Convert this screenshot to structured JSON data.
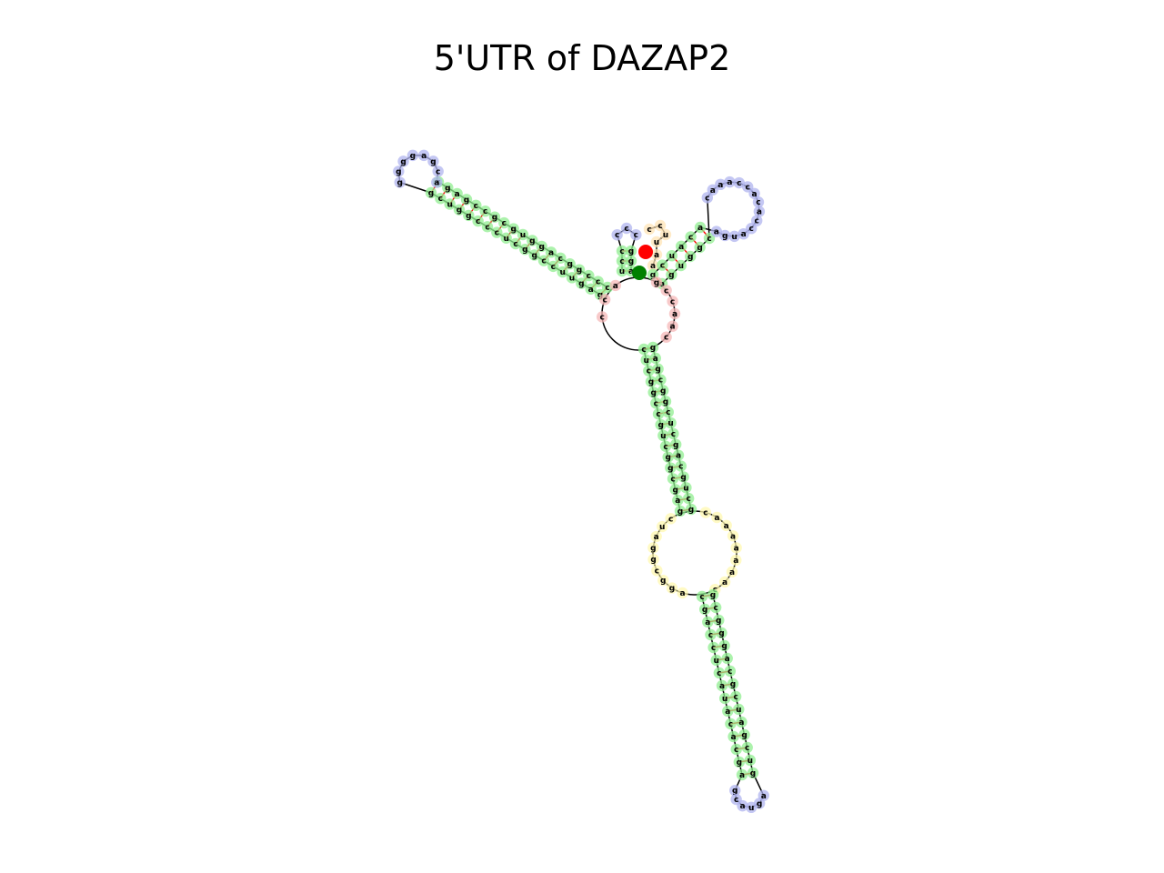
{
  "title": "5'UTR of DAZAP2",
  "colors": {
    "stem": "#90ee90",
    "hairpin_loop": "#b0b4ef",
    "interior_loop": "#fff8b0",
    "multiloop": "#f5b8b8",
    "external": "#ffe4b5",
    "backbone": "#000000",
    "pair_line": "#ff0000",
    "five_prime_marker": "#008000",
    "three_prime_marker": "#ff0000"
  },
  "structure": {
    "five_prime_marker": "green-dot",
    "three_prime_marker": "red-dot",
    "multiloop_left": [
      "c",
      "c",
      "a"
    ],
    "multiloop_right": [
      "g",
      "c",
      "c",
      "a",
      "a",
      "c"
    ],
    "stem_long_5p": [
      "c",
      "c",
      "c",
      "g",
      "g",
      "c",
      "a",
      "g",
      "g",
      "u",
      "g",
      "c",
      "g",
      "c",
      "c",
      "g",
      "a",
      "g",
      "c"
    ],
    "stem_long_3p": [
      "g",
      "a",
      "g",
      "u",
      "u",
      "c",
      "c",
      "g",
      "g",
      "c",
      "u",
      "c",
      "c",
      "c",
      "g",
      "g",
      "u",
      "c",
      "g"
    ],
    "hairpin1": [
      "a",
      "c",
      "g",
      "a",
      "g",
      "g",
      "g",
      "g"
    ],
    "stem_small_5p": [
      "u",
      "c",
      "c"
    ],
    "stem_small_3p": [
      "a",
      "g",
      "g"
    ],
    "hairpin2": [
      "c",
      "c",
      "c"
    ],
    "external_tail": [
      "c",
      "c",
      "u",
      "u",
      "a",
      "a"
    ],
    "stem3_5p": [
      "g",
      "c",
      "u",
      "a",
      "c",
      "a"
    ],
    "stem3_3p": [
      "a",
      "g",
      "u",
      "g",
      "g",
      "c"
    ],
    "hairpin3": [
      "a",
      "g",
      "u",
      "a",
      "c",
      "c",
      "a",
      "c",
      "a",
      "c",
      "c",
      "a",
      "a",
      "a",
      "c"
    ],
    "stem4_5p": [
      "c",
      "u",
      "c",
      "g",
      "g",
      "c",
      "c",
      "g",
      "u",
      "c",
      "g",
      "g",
      "c",
      "g",
      "a",
      "g"
    ],
    "stem4_3p": [
      "g",
      "a",
      "g",
      "c",
      "g",
      "g",
      "c",
      "u",
      "c",
      "g",
      "a",
      "c",
      "g",
      "u",
      "c",
      "g"
    ],
    "interior_big_left": [
      "c",
      "u",
      "a",
      "g",
      "g",
      "c",
      "g",
      "g",
      "a"
    ],
    "interior_big_right": [
      "c",
      "a",
      "a",
      "a",
      "a",
      "a",
      "a",
      "a",
      "c"
    ],
    "lower_stem_5p": [
      "c",
      "g",
      "a",
      "c",
      "c",
      "u",
      "c",
      "a",
      "u",
      "a",
      "c",
      "a",
      "c",
      "g",
      "a"
    ],
    "lower_stem_3p": [
      "g",
      "c",
      "g",
      "g",
      "g",
      "a",
      "c",
      "g",
      "c",
      "u",
      "a",
      "g",
      "c",
      "u",
      "g"
    ],
    "hairpin4": [
      "g",
      "c",
      "a",
      "u",
      "g",
      "a"
    ]
  }
}
